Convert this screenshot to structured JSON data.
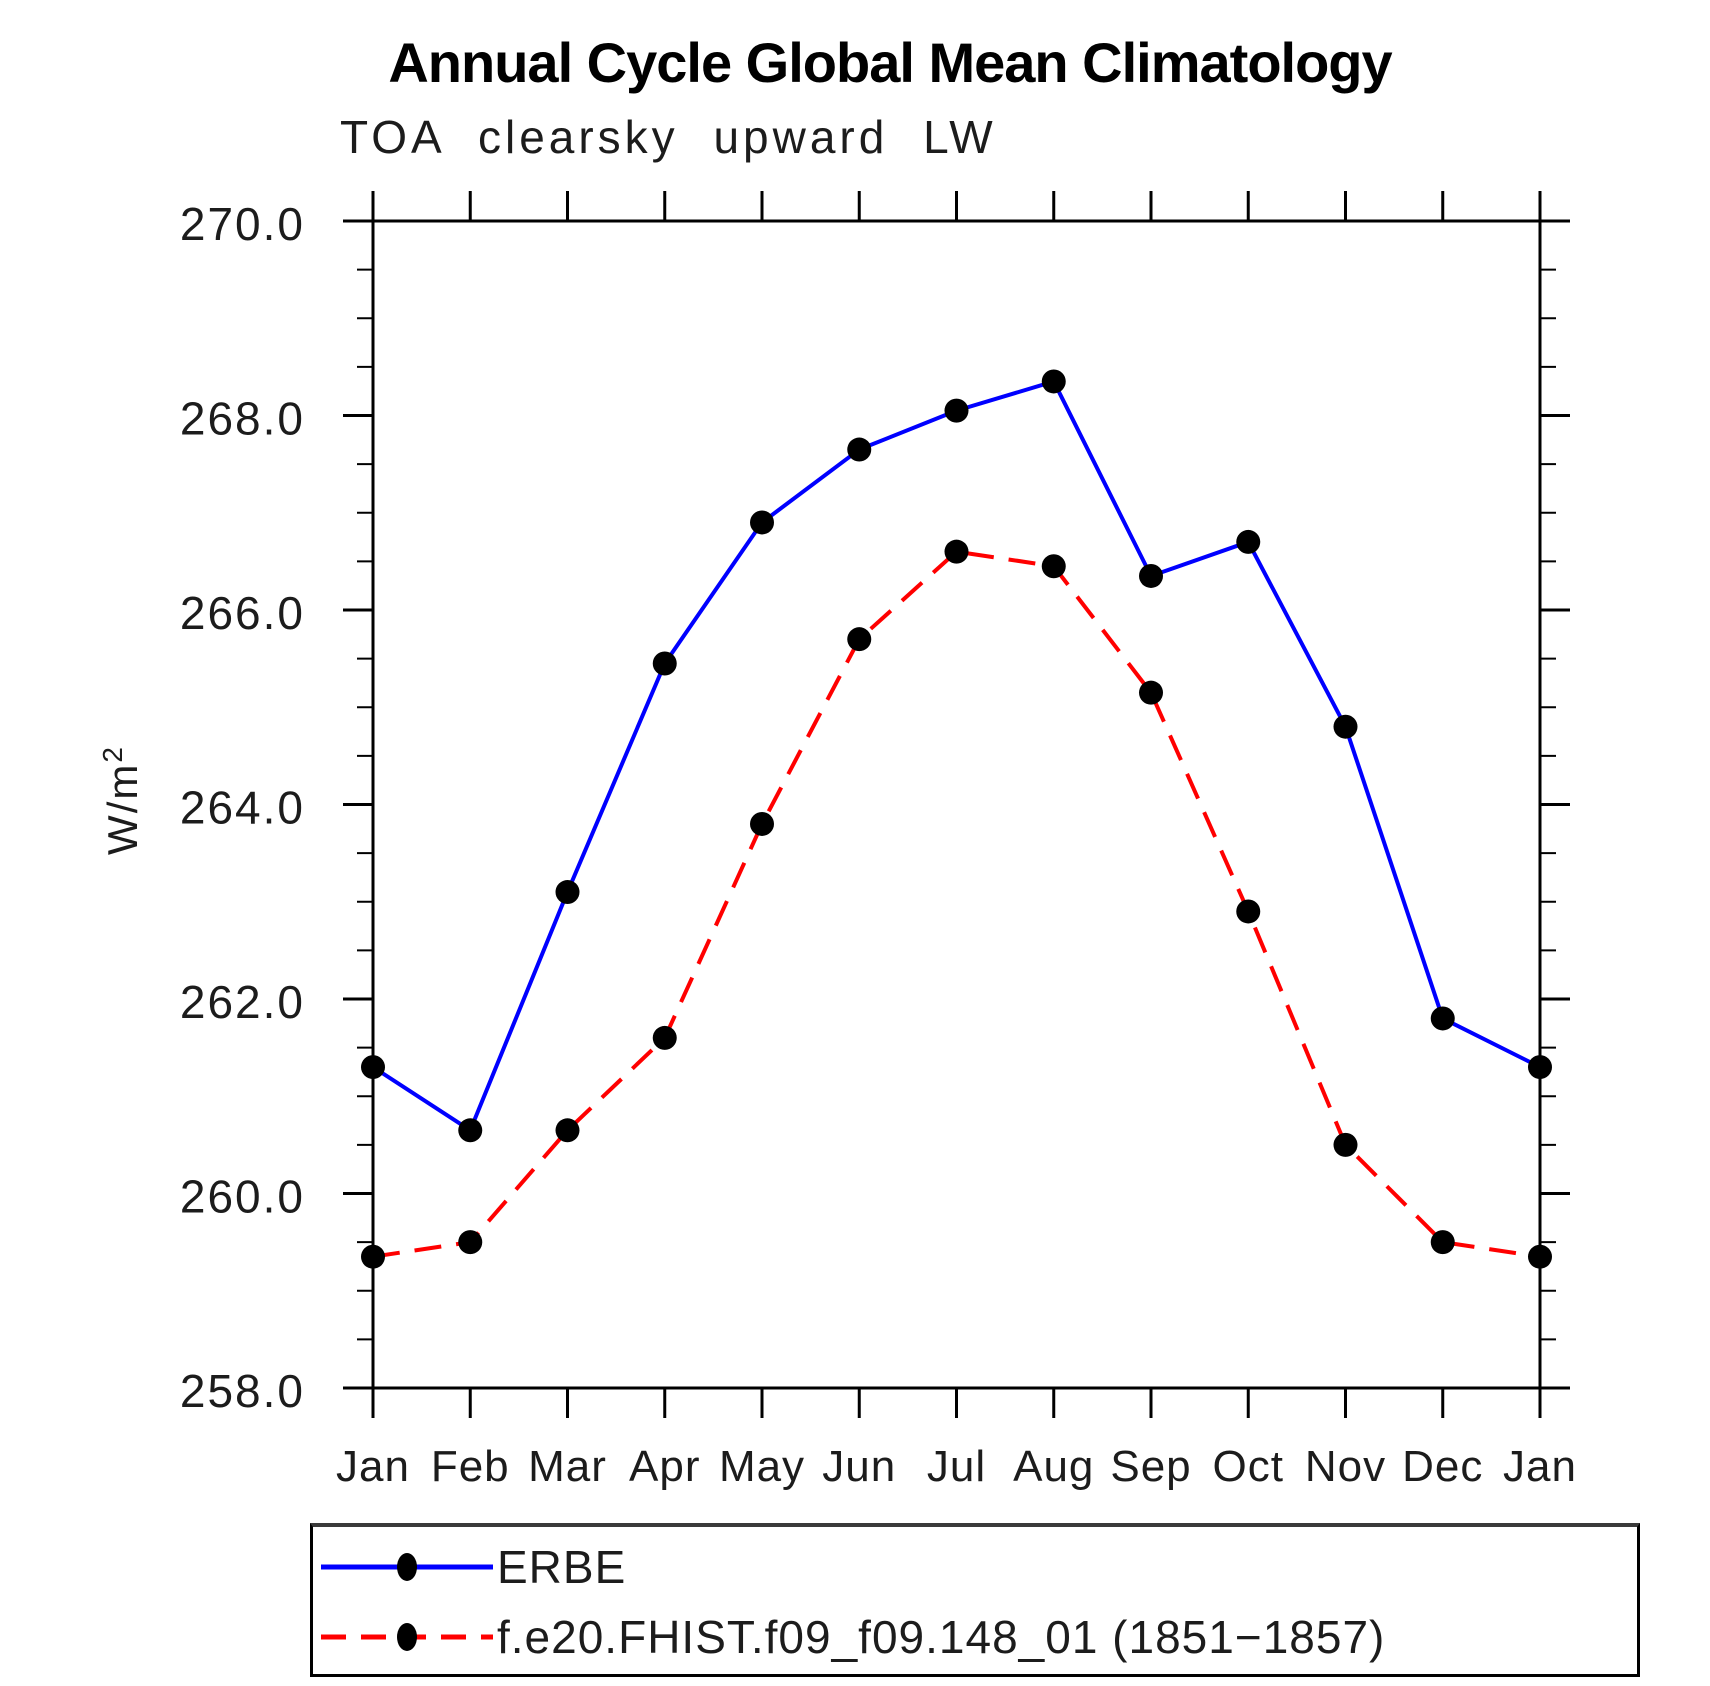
{
  "header": {
    "title": "Annual Cycle Global Mean Climatology",
    "subtitle": "TOA clearsky upward LW"
  },
  "axes": {
    "y": {
      "label": "W/m²",
      "label_base": "W/m",
      "label_exp": "2",
      "min": 258.0,
      "max": 270.0,
      "major_step": 2.0,
      "minor_step": 0.5,
      "tick_labels": [
        "258.0",
        "260.0",
        "262.0",
        "264.0",
        "266.0",
        "268.0",
        "270.0"
      ]
    },
    "x": {
      "tick_labels": [
        "Jan",
        "Feb",
        "Mar",
        "Apr",
        "May",
        "Jun",
        "Jul",
        "Aug",
        "Sep",
        "Oct",
        "Nov",
        "Dec",
        "Jan"
      ]
    }
  },
  "legend": {
    "items": [
      {
        "label": "ERBE",
        "color": "#0000ff",
        "style": "solid",
        "marker": "filled-circle"
      },
      {
        "label": "f.e20.FHIST.f09_f09.148_01 (1851−1857)",
        "color": "#ff0000",
        "style": "dashed",
        "marker": "filled-circle"
      }
    ]
  },
  "chart_data": {
    "type": "line",
    "title": "Annual Cycle Global Mean Climatology",
    "subtitle": "TOA clearsky upward LW",
    "categories": [
      "Jan",
      "Feb",
      "Mar",
      "Apr",
      "May",
      "Jun",
      "Jul",
      "Aug",
      "Sep",
      "Oct",
      "Nov",
      "Dec",
      "Jan"
    ],
    "series": [
      {
        "name": "ERBE",
        "color": "#0000ff",
        "line_style": "solid",
        "values": [
          261.3,
          260.65,
          263.1,
          265.45,
          266.9,
          267.65,
          268.05,
          268.35,
          266.35,
          266.7,
          264.8,
          261.8,
          261.3
        ]
      },
      {
        "name": "f.e20.FHIST.f09_f09.148_01 (1851−1857)",
        "color": "#ff0000",
        "line_style": "dashed",
        "values": [
          259.35,
          259.5,
          260.65,
          261.6,
          263.8,
          265.7,
          266.6,
          266.45,
          265.15,
          262.9,
          260.5,
          259.5,
          259.35
        ]
      }
    ],
    "xlabel": "",
    "ylabel": "W/m²",
    "ylim": [
      258.0,
      270.0
    ],
    "marker_color": "#000000",
    "grid": false,
    "legend_position": "bottom"
  },
  "colors": {
    "axis": "#000000",
    "text": "#1c1c1c",
    "series_blue": "#0000ff",
    "series_red": "#ff0000",
    "background": "#ffffff"
  }
}
